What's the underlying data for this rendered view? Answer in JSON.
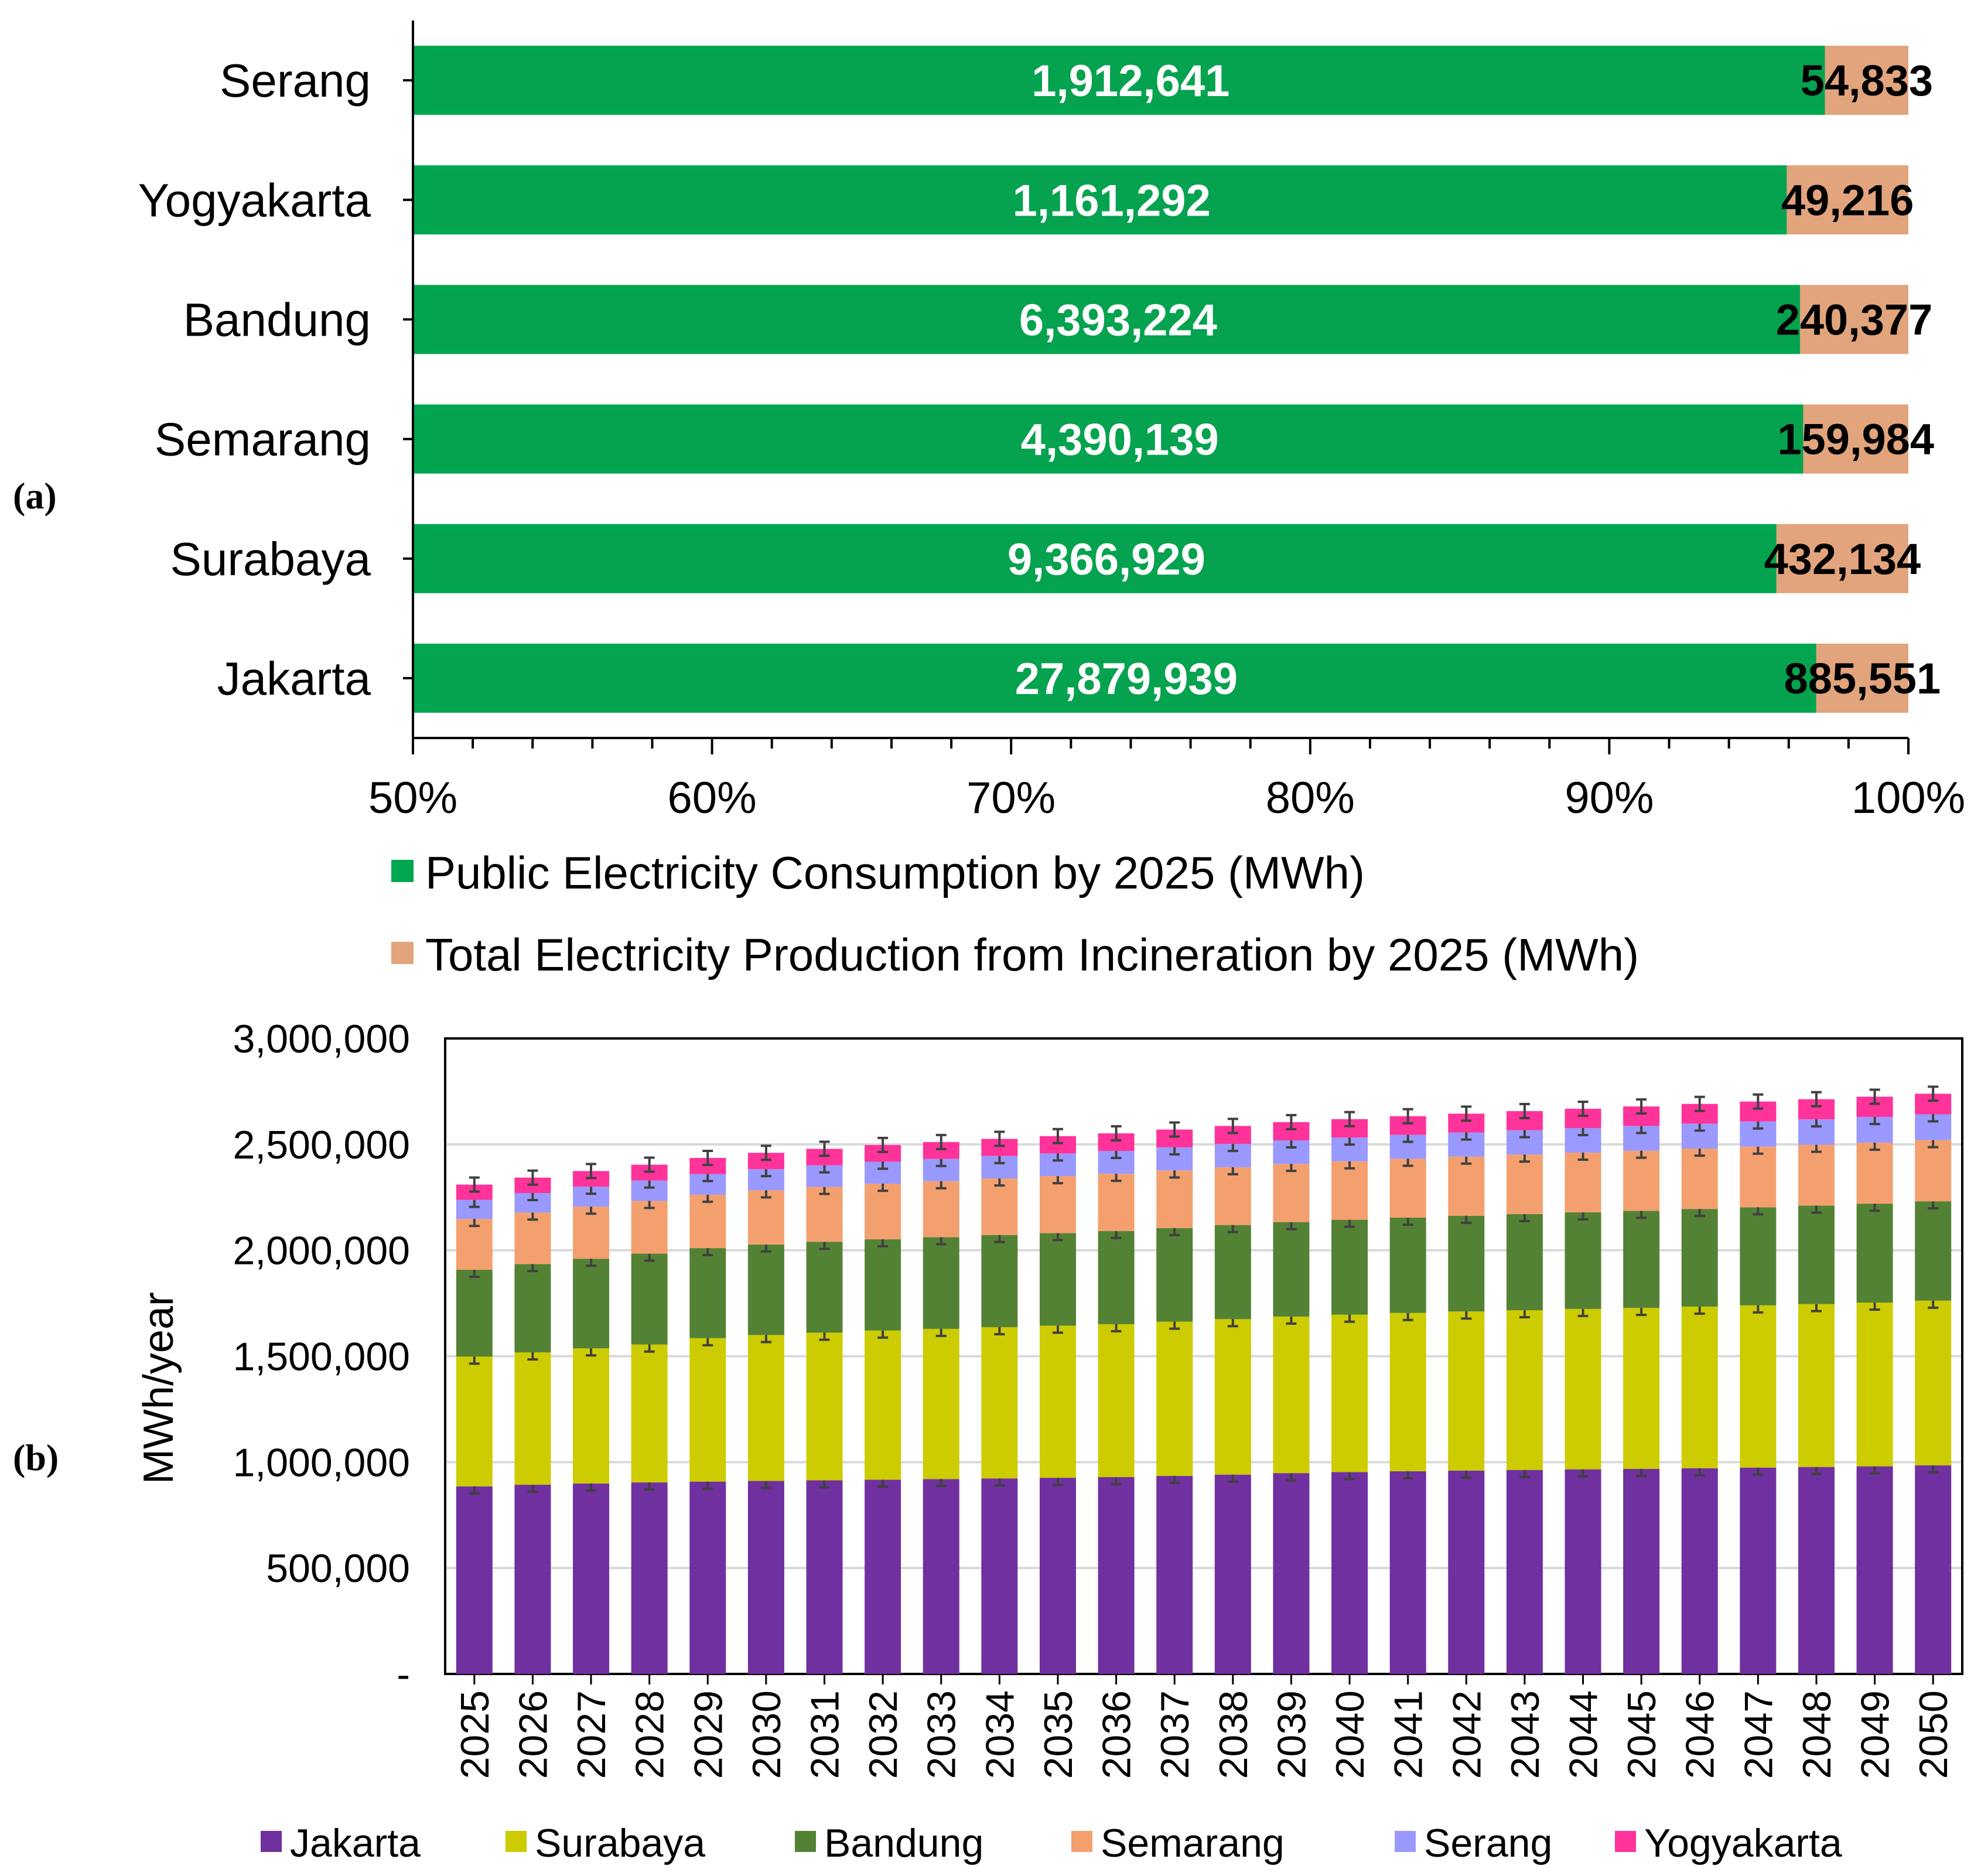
{
  "panel_a": {
    "label": "(a)",
    "colors": {
      "consumption": "#00A650",
      "incineration": "#E2A47C"
    },
    "chart_data": {
      "type": "bar",
      "orientation": "horizontal",
      "stacked": "percent",
      "categories": [
        "Serang",
        "Yogyakarta",
        "Bandung",
        "Semarang",
        "Surabaya",
        "Jakarta"
      ],
      "series": [
        {
          "name": "Public Electricity Consumption by 2025 (MWh)",
          "values": [
            1912641,
            1161292,
            6393224,
            4390139,
            9366929,
            27879939
          ]
        },
        {
          "name": "Total Electricity Production from Incineration by 2025 (MWh)",
          "values": [
            54833,
            49216,
            240377,
            159984,
            432134,
            885551
          ]
        }
      ],
      "data_labels": {
        "consumption": [
          "1,912,641",
          "1,161,292",
          "6,393,224",
          "4,390,139",
          "9,366,929",
          "27,879,939"
        ],
        "incineration": [
          "54,833",
          "49,216",
          "240,377",
          "159,984",
          "432,134",
          "885,551"
        ]
      },
      "xlim": [
        50,
        100
      ],
      "xticks": [
        "50%",
        "60%",
        "70%",
        "80%",
        "90%",
        "100%"
      ],
      "legend": "bottom"
    }
  },
  "panel_b": {
    "label": "(b)",
    "colors": [
      "#7030A0",
      "#CCCC00",
      "#548235",
      "#F4A06E",
      "#9999FF",
      "#FF3399"
    ],
    "chart_data": {
      "type": "bar",
      "stacked": true,
      "categories": [
        "2025",
        "2026",
        "2027",
        "2028",
        "2029",
        "2030",
        "2031",
        "2032",
        "2033",
        "2034",
        "2035",
        "2036",
        "2037",
        "2038",
        "2039",
        "2040",
        "2041",
        "2042",
        "2043",
        "2044",
        "2045",
        "2046",
        "2047",
        "2048",
        "2049",
        "2050"
      ],
      "series": [
        {
          "name": "Jakarta",
          "values": [
            885551,
            893000,
            899000,
            904000,
            908000,
            911000,
            914000,
            917000,
            920000,
            923000,
            926000,
            929000,
            935000,
            941000,
            948000,
            953000,
            957000,
            960000,
            963000,
            966000,
            968000,
            971000,
            974000,
            977000,
            980000,
            985000
          ]
        },
        {
          "name": "Surabaya",
          "values": [
            612449,
            625000,
            638000,
            651000,
            677000,
            689000,
            697000,
            704000,
            709000,
            714000,
            718000,
            722000,
            728000,
            734000,
            739000,
            743000,
            747000,
            751000,
            754000,
            757000,
            760000,
            763000,
            766000,
            769000,
            773000,
            777000
          ]
        },
        {
          "name": "Bandung",
          "values": [
            410000,
            417000,
            423000,
            429000,
            425000,
            427000,
            429000,
            431000,
            433000,
            435000,
            437000,
            440000,
            442000,
            444000,
            446000,
            448000,
            450000,
            452000,
            454000,
            456000,
            458000,
            461000,
            463000,
            465000,
            467000,
            469000
          ]
        },
        {
          "name": "Semarang",
          "values": [
            240000,
            243000,
            246000,
            249000,
            252000,
            256000,
            259000,
            262000,
            264000,
            267000,
            269000,
            270000,
            272000,
            273000,
            275000,
            276000,
            278000,
            279000,
            281000,
            282000,
            284000,
            285000,
            286000,
            287000,
            288000,
            289000
          ]
        },
        {
          "name": "Serang",
          "values": [
            90000,
            92000,
            94000,
            96000,
            98000,
            100000,
            102000,
            104000,
            105000,
            106000,
            107000,
            108000,
            109000,
            110000,
            111000,
            112000,
            113000,
            114000,
            115000,
            116000,
            117000,
            118000,
            119000,
            120000,
            121000,
            122000
          ]
        },
        {
          "name": "Yogyakarta",
          "values": [
            72000,
            73000,
            74000,
            75000,
            76000,
            77000,
            78000,
            79000,
            80000,
            81000,
            82000,
            83000,
            84000,
            85000,
            86000,
            87000,
            88000,
            89000,
            90000,
            91000,
            92000,
            93000,
            94000,
            95000,
            96000,
            97000
          ]
        }
      ],
      "ylabel": "MWh/year",
      "ylim": [
        0,
        3000000
      ],
      "yticks": [
        "-",
        "500,000",
        "1,000,000",
        "1,500,000",
        "2,000,000",
        "2,500,000",
        "3,000,000"
      ],
      "grid": true,
      "error_bars": true,
      "legend": "bottom"
    }
  }
}
